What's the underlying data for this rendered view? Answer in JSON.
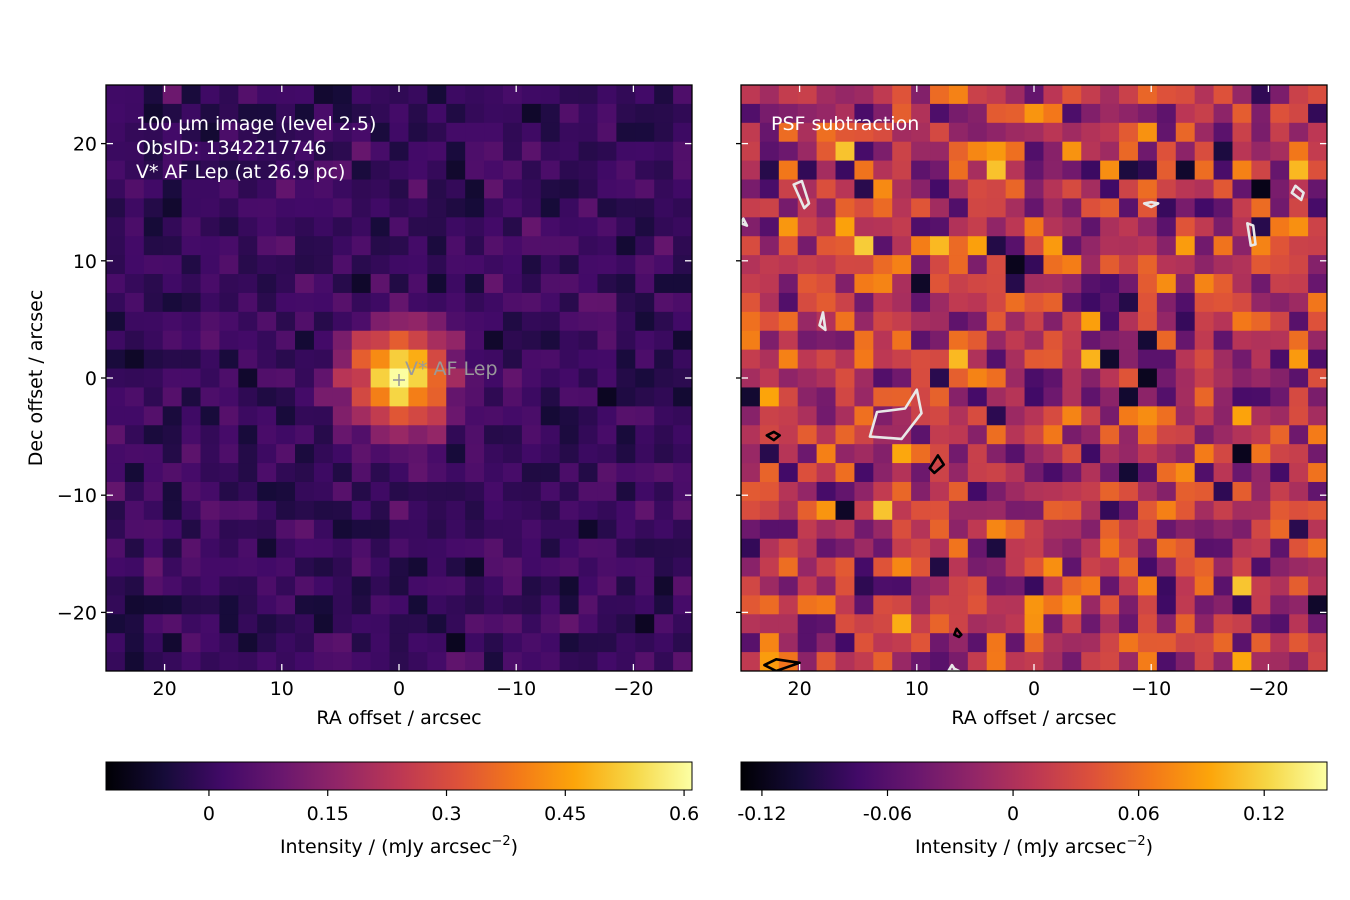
{
  "chart_data": [
    {
      "type": "heatmap",
      "id": "left-panel",
      "colormap": "inferno",
      "annotation_lines": [
        "100 µm image (level 2.5)",
        "ObsID: 1342217746",
        "V* AF Lep (at 26.9 pc)"
      ],
      "xlabel": "RA offset / arcsec",
      "ylabel": "Dec offset / arcsec",
      "xlim": [
        25,
        -25
      ],
      "ylim": [
        -25,
        25
      ],
      "xticks": [
        20,
        10,
        0,
        -10,
        -20
      ],
      "xtick_labels": [
        "20",
        "10",
        "0",
        "−10",
        "−20"
      ],
      "yticks": [
        20,
        10,
        0,
        -10,
        -20
      ],
      "ytick_labels": [
        "20",
        "10",
        "0",
        "−10",
        "−20"
      ],
      "grid": false,
      "source": {
        "name": "V* AF Lep",
        "ra": 0,
        "dec": 0,
        "peak_intensity": 0.6,
        "fwhm_arcsec": 7
      },
      "background_intensity": 0.0,
      "colorbar": {
        "label": "Intensity / (mJy arcsec",
        "label_exp": "−2",
        "label_close": ")",
        "range": [
          -0.13,
          0.61
        ],
        "ticks": [
          0,
          0.15,
          0.3,
          0.45,
          0.6
        ],
        "tick_labels": [
          "0",
          "0.15",
          "0.3",
          "0.45",
          "0.6"
        ]
      }
    },
    {
      "type": "heatmap",
      "id": "right-panel",
      "colormap": "inferno",
      "annotation_lines": [
        "PSF subtraction"
      ],
      "xlabel": "RA offset / arcsec",
      "xlim": [
        25,
        -25
      ],
      "ylim": [
        -25,
        25
      ],
      "xticks": [
        20,
        10,
        0,
        -10,
        -20
      ],
      "xtick_labels": [
        "20",
        "10",
        "0",
        "−10",
        "−20"
      ],
      "grid": false,
      "background_intensity": 0.0,
      "contours": [
        {
          "level": "white",
          "points": [
            [
              10.0,
              -1.0
            ],
            [
              11.0,
              -2.6
            ],
            [
              13.4,
              -2.9
            ],
            [
              14.0,
              -5.0
            ],
            [
              11.3,
              -5.2
            ],
            [
              9.6,
              -3.0
            ]
          ]
        },
        {
          "level": "white",
          "points": [
            [
              19.8,
              16.8
            ],
            [
              19.2,
              14.9
            ],
            [
              19.6,
              14.5
            ],
            [
              20.5,
              16.5
            ]
          ]
        },
        {
          "level": "white",
          "points": [
            [
              18.0,
              5.6
            ],
            [
              17.8,
              4.1
            ],
            [
              18.3,
              4.5
            ]
          ]
        },
        {
          "level": "white",
          "points": [
            [
              -22.3,
              16.4
            ],
            [
              -23.0,
              15.8
            ],
            [
              -22.8,
              15.2
            ],
            [
              -22.0,
              15.8
            ]
          ]
        },
        {
          "level": "white",
          "points": [
            [
              -18.2,
              13.2
            ],
            [
              -18.5,
              11.3
            ],
            [
              -18.9,
              11.4
            ],
            [
              -18.7,
              13.0
            ]
          ]
        },
        {
          "level": "white",
          "points": [
            [
              -10.0,
              15.0
            ],
            [
              -10.6,
              14.9
            ],
            [
              -10.0,
              14.6
            ],
            [
              -9.4,
              14.9
            ]
          ]
        },
        {
          "level": "white",
          "points": [
            [
              6.8,
              -24.8
            ],
            [
              6.4,
              -25.0
            ],
            [
              7.3,
              -25.0
            ],
            [
              7.0,
              -24.5
            ]
          ]
        },
        {
          "level": "white",
          "points": [
            [
              24.5,
              13.0
            ],
            [
              24.8,
              13.6
            ],
            [
              25.0,
              13.2
            ]
          ]
        },
        {
          "level": "black",
          "points": [
            [
              8.2,
              -6.6
            ],
            [
              8.9,
              -7.7
            ],
            [
              8.5,
              -8.1
            ],
            [
              7.7,
              -7.4
            ]
          ]
        },
        {
          "level": "black",
          "points": [
            [
              22.8,
              -4.9
            ],
            [
              22.2,
              -5.3
            ],
            [
              21.7,
              -4.9
            ],
            [
              22.2,
              -4.6
            ]
          ]
        },
        {
          "level": "black",
          "points": [
            [
              6.6,
              -21.4
            ],
            [
              6.2,
              -21.9
            ],
            [
              6.4,
              -22.1
            ],
            [
              6.8,
              -21.9
            ]
          ]
        },
        {
          "level": "black",
          "points": [
            [
              20.0,
              -24.3
            ],
            [
              22.0,
              -24.0
            ],
            [
              23.0,
              -24.5
            ],
            [
              22.0,
              -25.0
            ]
          ]
        }
      ],
      "colorbar": {
        "label": "Intensity / (mJy arcsec",
        "label_exp": "−2",
        "label_close": ")",
        "range": [
          -0.13,
          0.15
        ],
        "ticks": [
          -0.12,
          -0.06,
          0,
          0.06,
          0.12
        ],
        "tick_labels": [
          "-0.12",
          "-0.06",
          "0",
          "0.06",
          "0.12"
        ]
      }
    }
  ]
}
